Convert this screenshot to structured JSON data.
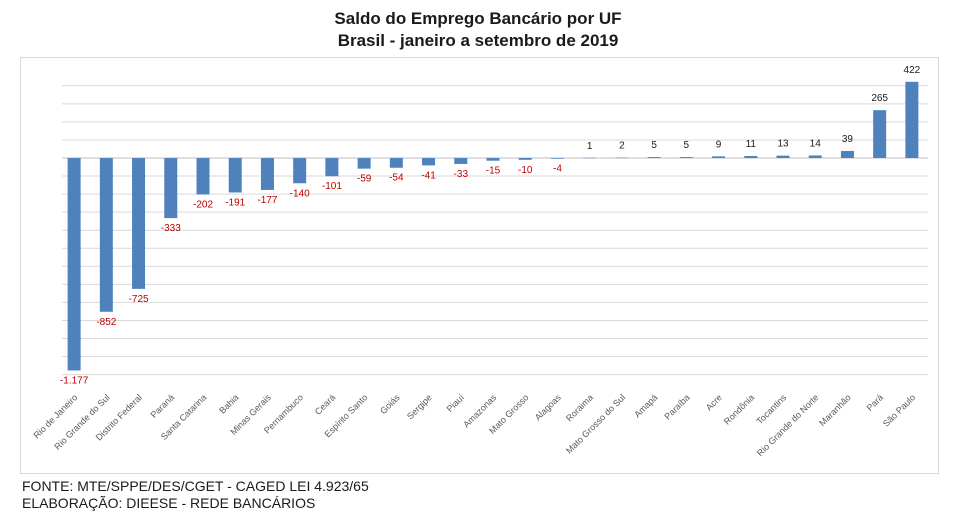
{
  "chart_data": {
    "type": "bar",
    "title": "Saldo do Emprego Bancário por UF",
    "subtitle": "Brasil - janeiro a setembro de 2019",
    "categories": [
      "Rio de Janeiro",
      "Rio Grande do Sul",
      "Distrito Federal",
      "Paraná",
      "Santa Catarina",
      "Bahia",
      "Minas Gerais",
      "Pernambuco",
      "Ceará",
      "Espírito Santo",
      "Goiás",
      "Sergipe",
      "Piauí",
      "Amazonas",
      "Mato Grosso",
      "Alagoas",
      "Roraima",
      "Mato Grosso do Sul",
      "Amapá",
      "Paraíba",
      "Acre",
      "Rondônia",
      "Tocantins",
      "Rio Grande do Norte",
      "Maranhão",
      "Pará",
      "São Paulo"
    ],
    "values": [
      -1177,
      -852,
      -725,
      -333,
      -202,
      -191,
      -177,
      -140,
      -101,
      -59,
      -54,
      -41,
      -33,
      -15,
      -10,
      -4,
      1,
      2,
      5,
      5,
      9,
      11,
      13,
      14,
      39,
      265,
      422
    ],
    "data_labels": [
      "-1.177",
      "-852",
      "-725",
      "-333",
      "-202",
      "-191",
      "-177",
      "-140",
      "-101",
      "-59",
      "-54",
      "-41",
      "-33",
      "-15",
      "-10",
      "-4",
      "1",
      "2",
      "5",
      "5",
      "9",
      "11",
      "13",
      "14",
      "39",
      "265",
      "422"
    ],
    "ylim": [
      -1200,
      450
    ],
    "grid": true,
    "legend": "none",
    "xlabel": "",
    "ylabel": ""
  },
  "colors": {
    "bar": "#4f81bd",
    "negative_label": "#c00000",
    "positive_label": "#1a1a1a",
    "gridline": "#d9d9d9",
    "axis_tick_label": "#595959"
  },
  "footer": {
    "source": "FONTE: MTE/SPPE/DES/CGET - CAGED LEI 4.923/65",
    "credit": "ELABORAÇÃO: DIEESE - REDE BANCÁRIOS"
  }
}
